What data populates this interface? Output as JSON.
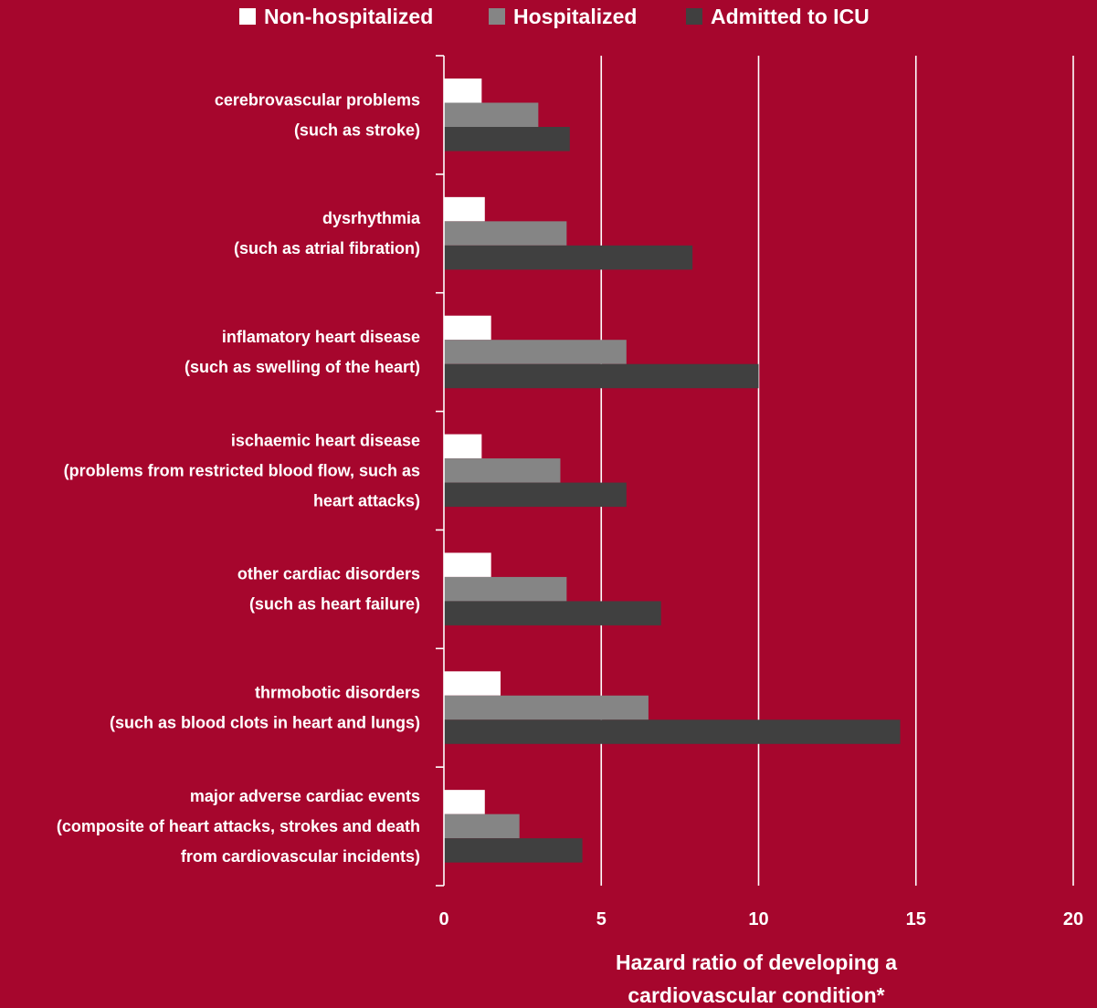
{
  "chart_data": {
    "type": "bar",
    "orientation": "horizontal",
    "title": "",
    "xlabel": "Hazard ratio of developing a cardiovascular condition*",
    "xlabel_lines": [
      "Hazard ratio of developing a",
      "cardiovascular condition*"
    ],
    "xlim": [
      0,
      20
    ],
    "xticks": [
      0,
      5,
      10,
      15,
      20
    ],
    "grid": "vertical",
    "legend_position": "top",
    "categories": [
      [
        "cerebrovascular problems",
        "(such as stroke)"
      ],
      [
        "dysrhythmia",
        "(such as atrial fibration)"
      ],
      [
        "inflamatory heart disease",
        "(such as swelling of the heart)"
      ],
      [
        "ischaemic heart disease",
        "(problems from restricted blood flow, such as",
        "heart attacks)"
      ],
      [
        "other cardiac disorders",
        "(such as heart failure)"
      ],
      [
        "thrmobotic disorders",
        "(such as blood clots in heart and lungs)"
      ],
      [
        "major adverse cardiac events",
        "(composite of heart attacks, strokes and death",
        "from cardiovascular incidents)"
      ]
    ],
    "series": [
      {
        "name": "Non-hospitalized",
        "color": "#ffffff",
        "values": [
          1.2,
          1.3,
          1.5,
          1.2,
          1.5,
          1.8,
          1.3
        ]
      },
      {
        "name": "Hospitalized",
        "color": "#858585",
        "values": [
          3.0,
          3.9,
          5.8,
          3.7,
          3.9,
          6.5,
          2.4
        ]
      },
      {
        "name": "Admitted to ICU",
        "color": "#404040",
        "values": [
          4.0,
          7.9,
          10.0,
          5.8,
          6.9,
          14.5,
          4.4
        ]
      }
    ],
    "background": "#a6062d",
    "text_color": "#ffffff",
    "gridline_color": "#ffffff"
  }
}
